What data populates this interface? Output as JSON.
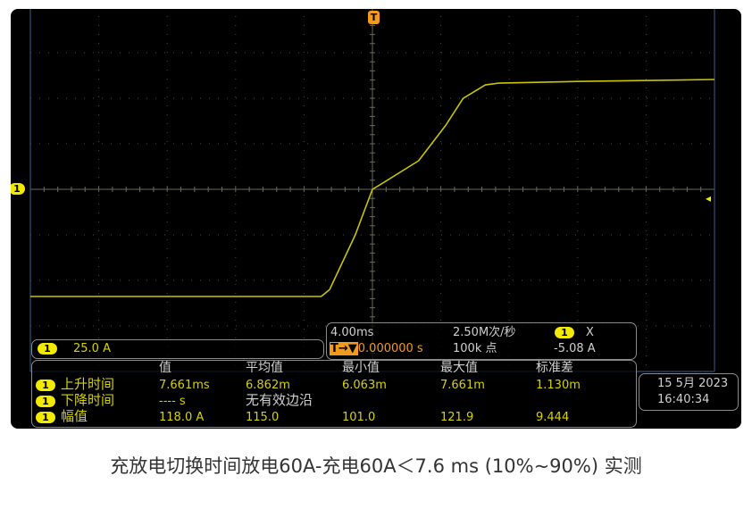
{
  "chart_data": {
    "type": "line",
    "title": "",
    "xlabel": "",
    "ylabel": "",
    "x_unit": "ms",
    "y_unit": "A",
    "xlim": [
      -20,
      20
    ],
    "ylim": [
      -100,
      100
    ],
    "grid": true,
    "x_divisions": 10,
    "y_divisions": 8,
    "series": [
      {
        "color": "#c9c400",
        "points": [
          [
            -20,
            -58.8
          ],
          [
            -3.0,
            -58.8
          ],
          [
            -2.5,
            -55
          ],
          [
            -1.0,
            -25
          ],
          [
            0,
            0
          ],
          [
            0.6,
            3.4
          ],
          [
            2.7,
            15.7
          ],
          [
            4.3,
            35.3
          ],
          [
            5.3,
            49.9
          ],
          [
            6.6,
            57.3
          ],
          [
            7.4,
            58.3
          ],
          [
            12,
            59.2
          ],
          [
            20,
            60.3
          ]
        ]
      }
    ]
  },
  "markers": {
    "trigger": "T",
    "channel": "1"
  },
  "channel_box": {
    "badge": "1",
    "scale": "25.0 A"
  },
  "timebase": {
    "time_per_div": "4.00ms",
    "trigger_prefix": "T→▼",
    "trigger_delay": "0.000000 s",
    "sample_rate": "2.50M次/秒",
    "points": "100k 点",
    "trigger_source_badge": "1",
    "trigger_type": "X",
    "trigger_level": "-5.08 A"
  },
  "measurements": {
    "headers": [
      "值",
      "平均值",
      "最小值",
      "最大值",
      "标准差"
    ],
    "rows": [
      {
        "badge": "1",
        "label": "上升时间",
        "values": [
          "7.661ms",
          "6.862m",
          "6.063m",
          "7.661m",
          "1.130m"
        ]
      },
      {
        "badge": "1",
        "label": "下降时间",
        "values": [
          "---- s",
          "无有效边沿"
        ]
      },
      {
        "badge": "1",
        "label": "幅值",
        "values": [
          "118.0 A",
          "115.0",
          "101.0",
          "121.9",
          "9.444"
        ]
      }
    ]
  },
  "datetime": {
    "date": "15 5月 2023",
    "time": "16:40:34"
  },
  "colors": {
    "trace": "#c9c400",
    "trigger": "#f29a1c",
    "channel": "#f2ea00",
    "background": "#000000"
  },
  "caption": "充放电切换时间放电60A-充电60A＜7.6 ms (10%~90%) 实测"
}
